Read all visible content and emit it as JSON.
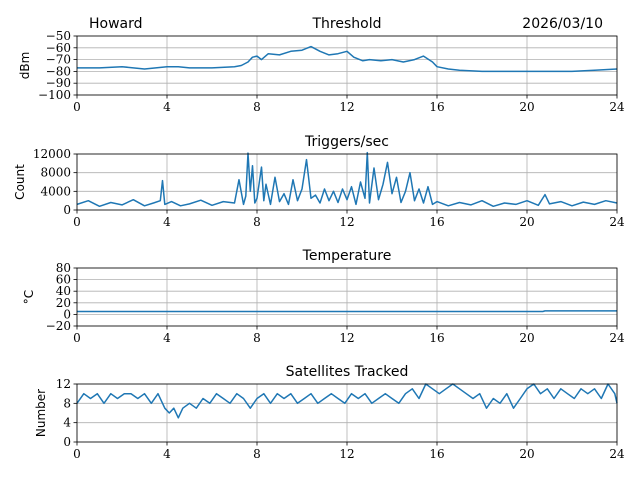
{
  "header": {
    "station": "Howard",
    "date": "2026/03/10"
  },
  "colors": {
    "series": "#1f77b4",
    "grid": "#b0b0b0",
    "axis": "#000000"
  },
  "chart_data": [
    {
      "type": "line",
      "title": "Threshold",
      "ylabel": "dBm",
      "xlim": [
        0,
        24
      ],
      "ylim": [
        -100,
        -50
      ],
      "xticks": [
        0,
        4,
        8,
        12,
        16,
        20,
        24
      ],
      "xtick_labels": [
        "0",
        "4",
        "8",
        "12",
        "16",
        "20",
        "24"
      ],
      "yticks": [
        -100,
        -90,
        -80,
        -70,
        -60,
        -50
      ],
      "ytick_labels": [
        "−100",
        "−90",
        "−80",
        "−70",
        "−60",
        "−50"
      ],
      "grid": true,
      "series": [
        {
          "name": "Threshold",
          "x": [
            0,
            1,
            2,
            3,
            3.5,
            4,
            4.5,
            5,
            6,
            7,
            7.3,
            7.6,
            7.8,
            8,
            8.2,
            8.5,
            9,
            9.5,
            10,
            10.4,
            10.8,
            11.2,
            11.6,
            12,
            12.3,
            12.7,
            13,
            13.5,
            14,
            14.5,
            15,
            15.4,
            15.8,
            16,
            16.5,
            17,
            18,
            19,
            20,
            21,
            22,
            23,
            24
          ],
          "y": [
            -77,
            -77,
            -76,
            -78,
            -77,
            -76,
            -76,
            -77,
            -77,
            -76,
            -75,
            -72,
            -68,
            -67,
            -70,
            -65,
            -66,
            -63,
            -62,
            -59,
            -63,
            -66,
            -65,
            -63,
            -68,
            -71,
            -70,
            -71,
            -70,
            -72,
            -70,
            -67,
            -72,
            -76,
            -78,
            -79,
            -80,
            -80,
            -80,
            -80,
            -80,
            -79,
            -78
          ]
        }
      ]
    },
    {
      "type": "line",
      "title": "Triggers/sec",
      "ylabel": "Count",
      "xlim": [
        0,
        24
      ],
      "ylim": [
        0,
        12000
      ],
      "xticks": [
        0,
        4,
        8,
        12,
        16,
        20,
        24
      ],
      "xtick_labels": [
        "0",
        "4",
        "8",
        "12",
        "16",
        "20",
        "24"
      ],
      "yticks": [
        0,
        4000,
        8000,
        12000
      ],
      "ytick_labels": [
        "0",
        "4000",
        "8000",
        "12000"
      ],
      "grid": true,
      "series": [
        {
          "name": "Triggers",
          "x": [
            0,
            0.5,
            1,
            1.5,
            2,
            2.5,
            3,
            3.4,
            3.7,
            3.8,
            3.9,
            4.2,
            4.6,
            5,
            5.5,
            6,
            6.5,
            7,
            7.2,
            7.4,
            7.5,
            7.6,
            7.7,
            7.8,
            7.9,
            8,
            8.2,
            8.3,
            8.4,
            8.6,
            8.8,
            9,
            9.2,
            9.4,
            9.6,
            9.8,
            10,
            10.2,
            10.4,
            10.6,
            10.8,
            11,
            11.2,
            11.4,
            11.6,
            11.8,
            12,
            12.2,
            12.4,
            12.6,
            12.8,
            12.9,
            13,
            13.2,
            13.4,
            13.6,
            13.8,
            14,
            14.2,
            14.4,
            14.6,
            14.8,
            15,
            15.2,
            15.4,
            15.6,
            15.8,
            16,
            16.5,
            17,
            17.5,
            18,
            18.5,
            19,
            19.5,
            20,
            20.5,
            20.8,
            21,
            21.5,
            22,
            22.5,
            23,
            23.5,
            24
          ],
          "y": [
            1200,
            2000,
            800,
            1600,
            1100,
            2200,
            900,
            1500,
            2000,
            6300,
            1200,
            1800,
            900,
            1300,
            2100,
            1000,
            1800,
            1500,
            6500,
            1200,
            3000,
            12200,
            4000,
            9500,
            1500,
            2500,
            9200,
            2000,
            5500,
            1200,
            7000,
            1800,
            3500,
            1200,
            6500,
            2000,
            4500,
            10800,
            2500,
            3200,
            1500,
            4500,
            2000,
            4000,
            1600,
            4500,
            2200,
            5000,
            1200,
            6000,
            2500,
            12300,
            1500,
            9000,
            2200,
            5500,
            10200,
            3500,
            7000,
            1600,
            4000,
            8000,
            2000,
            4500,
            1500,
            5000,
            1200,
            1800,
            900,
            1600,
            1100,
            2000,
            800,
            1500,
            1200,
            2000,
            1000,
            3300,
            1300,
            1800,
            900,
            1700,
            1200,
            2000,
            1500
          ]
        }
      ]
    },
    {
      "type": "line",
      "title": "Temperature",
      "ylabel": "°C",
      "xlim": [
        0,
        24
      ],
      "ylim": [
        -20,
        80
      ],
      "xticks": [
        0,
        4,
        8,
        12,
        16,
        20,
        24
      ],
      "xtick_labels": [
        "0",
        "4",
        "8",
        "12",
        "16",
        "20",
        "24"
      ],
      "yticks": [
        -20,
        0,
        20,
        40,
        60,
        80
      ],
      "ytick_labels": [
        "−20",
        "0",
        "20",
        "40",
        "60",
        "80"
      ],
      "grid": true,
      "series": [
        {
          "name": "Temperature",
          "x": [
            0,
            20.7,
            20.8,
            24
          ],
          "y": [
            5,
            5,
            6,
            6
          ]
        }
      ]
    },
    {
      "type": "line",
      "title": "Satellites Tracked",
      "ylabel": "Number",
      "xlim": [
        0,
        24
      ],
      "ylim": [
        0,
        12
      ],
      "xticks": [
        0,
        4,
        8,
        12,
        16,
        20,
        24
      ],
      "xtick_labels": [
        "0",
        "4",
        "8",
        "12",
        "16",
        "20",
        "24"
      ],
      "yticks": [
        0,
        4,
        8,
        12
      ],
      "ytick_labels": [
        "0",
        "4",
        "8",
        "12"
      ],
      "grid": true,
      "series": [
        {
          "name": "Satellites",
          "x": [
            0,
            0.3,
            0.6,
            0.9,
            1.2,
            1.5,
            1.8,
            2.1,
            2.4,
            2.7,
            3,
            3.3,
            3.6,
            3.9,
            4.1,
            4.3,
            4.5,
            4.7,
            5,
            5.3,
            5.6,
            5.9,
            6.2,
            6.5,
            6.8,
            7.1,
            7.4,
            7.7,
            8,
            8.3,
            8.6,
            8.9,
            9.2,
            9.5,
            9.8,
            10.1,
            10.4,
            10.7,
            11,
            11.3,
            11.6,
            11.9,
            12.2,
            12.5,
            12.8,
            13.1,
            13.4,
            13.7,
            14,
            14.3,
            14.6,
            14.9,
            15.2,
            15.5,
            15.8,
            16.1,
            16.4,
            16.7,
            17,
            17.3,
            17.6,
            17.9,
            18.2,
            18.5,
            18.8,
            19.1,
            19.4,
            19.7,
            20,
            20.3,
            20.6,
            20.9,
            21.2,
            21.5,
            21.8,
            22.1,
            22.4,
            22.7,
            23,
            23.3,
            23.6,
            23.9,
            24
          ],
          "y": [
            8,
            10,
            9,
            10,
            8,
            10,
            9,
            10,
            10,
            9,
            10,
            8,
            10,
            7,
            6,
            7,
            5,
            7,
            8,
            7,
            9,
            8,
            10,
            9,
            8,
            10,
            9,
            7,
            9,
            10,
            8,
            10,
            9,
            10,
            8,
            9,
            10,
            8,
            9,
            10,
            9,
            8,
            10,
            9,
            10,
            8,
            9,
            10,
            9,
            8,
            10,
            11,
            9,
            12,
            11,
            10,
            11,
            12,
            11,
            10,
            9,
            10,
            7,
            9,
            8,
            10,
            7,
            9,
            11,
            12,
            10,
            11,
            9,
            11,
            10,
            9,
            11,
            10,
            11,
            9,
            12,
            10,
            8
          ]
        }
      ]
    }
  ]
}
